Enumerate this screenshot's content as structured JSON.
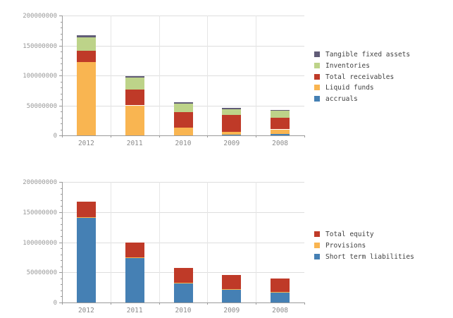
{
  "page": {
    "background_color": "#ffffff",
    "description": "Two stacked bar charts: balance sheet assets (top) and equity & liabilities (bottom) for years 2012-2008"
  },
  "chart_data": [
    {
      "type": "bar",
      "stacked": true,
      "name": "assets",
      "title": "",
      "xlabel": "",
      "ylabel": "",
      "categories": [
        "2012",
        "2011",
        "2010",
        "2009",
        "2008"
      ],
      "series": [
        {
          "name": "accruals",
          "color": "#4580b4",
          "values": [
            0,
            0,
            0,
            1000000,
            2000000
          ]
        },
        {
          "name": "Liquid funds",
          "color": "#f9b551",
          "values": [
            122000000,
            50000000,
            13000000,
            5000000,
            8000000
          ]
        },
        {
          "name": "Total receivables",
          "color": "#bf3a28",
          "values": [
            19000000,
            27000000,
            26000000,
            28000000,
            19000000
          ]
        },
        {
          "name": "Inventories",
          "color": "#bdd389",
          "values": [
            23000000,
            20000000,
            14000000,
            10000000,
            12000000
          ]
        },
        {
          "name": "Tangible fixed assets",
          "color": "#615c77",
          "values": [
            3000000,
            2000000,
            2000000,
            2000000,
            1000000
          ]
        }
      ],
      "ylim": [
        0,
        200000000
      ],
      "yticks": [
        0,
        50000000,
        100000000,
        150000000,
        200000000
      ],
      "minor_tick_step": 10000000,
      "grid": true,
      "legend_position": "right",
      "legend_order": "reverse-of-stack"
    },
    {
      "type": "bar",
      "stacked": true,
      "name": "equity-and-liabilities",
      "title": "",
      "xlabel": "",
      "ylabel": "",
      "categories": [
        "2012",
        "2011",
        "2010",
        "2009",
        "2008"
      ],
      "series": [
        {
          "name": "Short term liabilities",
          "color": "#4580b4",
          "values": [
            140000000,
            74000000,
            32000000,
            21000000,
            17000000
          ]
        },
        {
          "name": "Provisions",
          "color": "#f9b551",
          "values": [
            1000000,
            1000000,
            1000000,
            1000000,
            1000000
          ]
        },
        {
          "name": "Total equity",
          "color": "#bf3a28",
          "values": [
            26000000,
            25000000,
            24000000,
            24000000,
            22000000
          ]
        }
      ],
      "ylim": [
        0,
        200000000
      ],
      "yticks": [
        0,
        50000000,
        100000000,
        150000000,
        200000000
      ],
      "minor_tick_step": 10000000,
      "grid": true,
      "legend_position": "right",
      "legend_order": "reverse-of-stack"
    }
  ],
  "colors": {
    "accent_blue": "#4580b4",
    "accent_orange": "#f9b551",
    "accent_red": "#bf3a28",
    "accent_green": "#bdd389",
    "accent_purple_gray": "#615c77",
    "axis": "#9a9a9a",
    "gridline": "#dedede",
    "tick_label": "#999999",
    "category_label": "#8a8a8a",
    "legend_text": "#3f3f3f"
  }
}
